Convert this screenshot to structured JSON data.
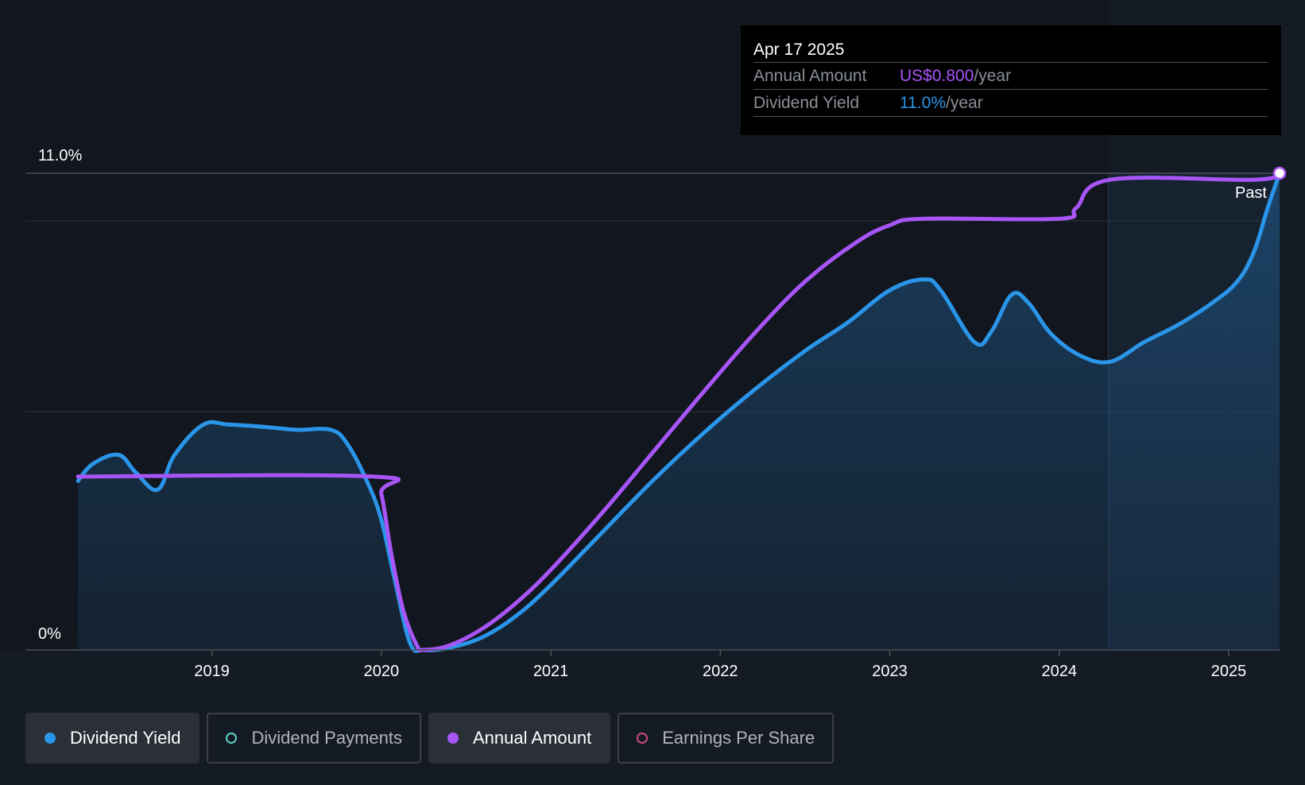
{
  "tooltip": {
    "date": "Apr 17 2025",
    "rows": [
      {
        "label": "Annual Amount",
        "value": "US$0.800",
        "unit": "/year",
        "color": "#a855f7"
      },
      {
        "label": "Dividend Yield",
        "value": "11.0%",
        "unit": "/year",
        "color": "#2a95e8"
      }
    ]
  },
  "legend": [
    {
      "label": "Dividend Yield",
      "color": "#2a95e8",
      "active": true,
      "filled": true
    },
    {
      "label": "Dividend Payments",
      "color": "#5ad1c4",
      "active": false,
      "filled": false
    },
    {
      "label": "Annual Amount",
      "color": "#a855f7",
      "active": true,
      "filled": true
    },
    {
      "label": "Earnings Per Share",
      "color": "#d04a86",
      "active": false,
      "filled": false
    }
  ],
  "chart_data": {
    "type": "line",
    "title": "",
    "xlabel": "",
    "ylabel": "",
    "ylim": [
      0,
      11.0
    ],
    "xlim": [
      2018.2,
      2025.3
    ],
    "y_tick_labels": [
      "0%",
      "11.0%"
    ],
    "x_tick_labels": [
      "2019",
      "2020",
      "2021",
      "2022",
      "2023",
      "2024",
      "2025"
    ],
    "past_label": "Past",
    "past_from_x": 2024.29,
    "series": [
      {
        "name": "Dividend Yield",
        "color": "#2a95e8",
        "area": true,
        "points": [
          [
            2018.21,
            3.9
          ],
          [
            2018.3,
            4.3
          ],
          [
            2018.45,
            4.5
          ],
          [
            2018.55,
            4.1
          ],
          [
            2018.68,
            3.7
          ],
          [
            2018.78,
            4.5
          ],
          [
            2018.95,
            5.2
          ],
          [
            2019.1,
            5.2
          ],
          [
            2019.3,
            5.15
          ],
          [
            2019.5,
            5.08
          ],
          [
            2019.7,
            5.08
          ],
          [
            2019.8,
            4.75
          ],
          [
            2019.92,
            3.85
          ],
          [
            2020.0,
            3.0
          ],
          [
            2020.08,
            1.6
          ],
          [
            2020.17,
            0.15
          ],
          [
            2020.25,
            0.0
          ],
          [
            2020.4,
            0.05
          ],
          [
            2020.6,
            0.3
          ],
          [
            2020.8,
            0.8
          ],
          [
            2021.0,
            1.5
          ],
          [
            2021.3,
            2.7
          ],
          [
            2021.6,
            3.9
          ],
          [
            2021.9,
            5.0
          ],
          [
            2022.2,
            6.0
          ],
          [
            2022.5,
            6.9
          ],
          [
            2022.75,
            7.55
          ],
          [
            2023.0,
            8.3
          ],
          [
            2023.2,
            8.55
          ],
          [
            2023.3,
            8.3
          ],
          [
            2023.5,
            7.1
          ],
          [
            2023.6,
            7.35
          ],
          [
            2023.72,
            8.2
          ],
          [
            2023.82,
            8.0
          ],
          [
            2023.95,
            7.3
          ],
          [
            2024.12,
            6.8
          ],
          [
            2024.3,
            6.65
          ],
          [
            2024.5,
            7.1
          ],
          [
            2024.7,
            7.5
          ],
          [
            2024.9,
            8.0
          ],
          [
            2025.05,
            8.5
          ],
          [
            2025.15,
            9.2
          ],
          [
            2025.23,
            10.2
          ],
          [
            2025.3,
            11.0
          ]
        ]
      },
      {
        "name": "Annual Amount",
        "color": "#a855f7",
        "area": false,
        "points": [
          [
            2018.21,
            4.0
          ],
          [
            2019.95,
            4.0
          ],
          [
            2020.0,
            3.6
          ],
          [
            2020.06,
            2.2
          ],
          [
            2020.13,
            0.9
          ],
          [
            2020.21,
            0.1
          ],
          [
            2020.25,
            0.0
          ],
          [
            2020.4,
            0.1
          ],
          [
            2020.6,
            0.5
          ],
          [
            2020.8,
            1.1
          ],
          [
            2021.0,
            1.85
          ],
          [
            2021.3,
            3.15
          ],
          [
            2021.6,
            4.55
          ],
          [
            2021.9,
            5.95
          ],
          [
            2022.2,
            7.3
          ],
          [
            2022.5,
            8.5
          ],
          [
            2022.8,
            9.4
          ],
          [
            2023.0,
            9.8
          ],
          [
            2023.2,
            9.95
          ],
          [
            2024.0,
            9.95
          ],
          [
            2024.1,
            10.2
          ],
          [
            2024.3,
            10.85
          ],
          [
            2025.15,
            10.85
          ],
          [
            2025.3,
            11.0
          ]
        ]
      }
    ]
  }
}
